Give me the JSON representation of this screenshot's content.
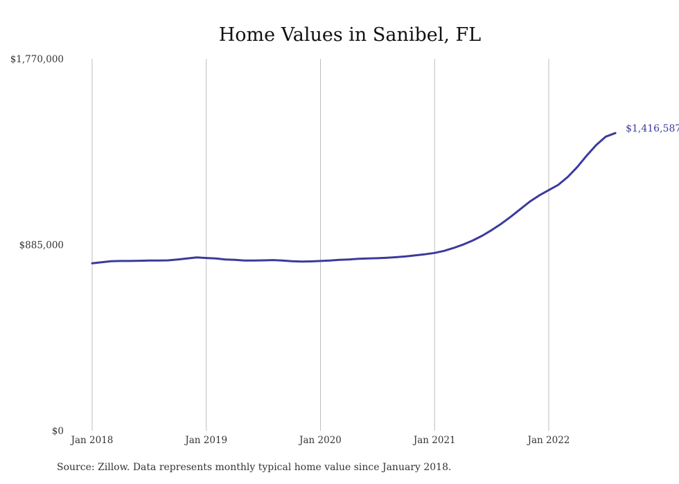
{
  "chart_data": {
    "type": "line",
    "title": "Home Values in Sanibel, FL",
    "xlabel": "",
    "ylabel": "",
    "ylim": [
      0,
      1770000
    ],
    "y_ticks": [
      {
        "value": 0,
        "label": "$0"
      },
      {
        "value": 885000,
        "label": "$885,000"
      },
      {
        "value": 1770000,
        "label": "$1,770,000"
      }
    ],
    "x_ticks": [
      {
        "value": "2018-01",
        "label": "Jan 2018"
      },
      {
        "value": "2019-01",
        "label": "Jan 2019"
      },
      {
        "value": "2020-01",
        "label": "Jan 2020"
      },
      {
        "value": "2021-01",
        "label": "Jan 2021"
      },
      {
        "value": "2022-01",
        "label": "Jan 2022"
      }
    ],
    "grid": {
      "vertical": true,
      "horizontal": false
    },
    "legend": "none",
    "series": [
      {
        "color": "#3b3a9c",
        "end_label": "$1,416,587",
        "points": [
          [
            "2018-01",
            797000
          ],
          [
            "2018-02",
            802000
          ],
          [
            "2018-03",
            807000
          ],
          [
            "2018-04",
            808000
          ],
          [
            "2018-05",
            808000
          ],
          [
            "2018-06",
            809000
          ],
          [
            "2018-07",
            810000
          ],
          [
            "2018-08",
            810000
          ],
          [
            "2018-09",
            811000
          ],
          [
            "2018-10",
            815000
          ],
          [
            "2018-11",
            820000
          ],
          [
            "2018-12",
            825000
          ],
          [
            "2019-01",
            822000
          ],
          [
            "2019-02",
            820000
          ],
          [
            "2019-03",
            815000
          ],
          [
            "2019-04",
            813000
          ],
          [
            "2019-05",
            810000
          ],
          [
            "2019-06",
            810000
          ],
          [
            "2019-07",
            811000
          ],
          [
            "2019-08",
            812000
          ],
          [
            "2019-09",
            810000
          ],
          [
            "2019-10",
            807000
          ],
          [
            "2019-11",
            805000
          ],
          [
            "2019-12",
            806000
          ],
          [
            "2020-01",
            808000
          ],
          [
            "2020-02",
            810000
          ],
          [
            "2020-03",
            813000
          ],
          [
            "2020-04",
            815000
          ],
          [
            "2020-05",
            818000
          ],
          [
            "2020-06",
            820000
          ],
          [
            "2020-07",
            821000
          ],
          [
            "2020-08",
            823000
          ],
          [
            "2020-09",
            826000
          ],
          [
            "2020-10",
            830000
          ],
          [
            "2020-11",
            835000
          ],
          [
            "2020-12",
            840000
          ],
          [
            "2021-01",
            846000
          ],
          [
            "2021-02",
            856000
          ],
          [
            "2021-03",
            870000
          ],
          [
            "2021-04",
            886000
          ],
          [
            "2021-05",
            905000
          ],
          [
            "2021-06",
            928000
          ],
          [
            "2021-07",
            955000
          ],
          [
            "2021-08",
            985000
          ],
          [
            "2021-09",
            1018000
          ],
          [
            "2021-10",
            1054000
          ],
          [
            "2021-11",
            1090000
          ],
          [
            "2021-12",
            1120000
          ],
          [
            "2022-01",
            1145000
          ],
          [
            "2022-02",
            1170000
          ],
          [
            "2022-03",
            1208000
          ],
          [
            "2022-04",
            1255000
          ],
          [
            "2022-05",
            1310000
          ],
          [
            "2022-06",
            1360000
          ],
          [
            "2022-07",
            1400000
          ],
          [
            "2022-08",
            1416587
          ]
        ]
      }
    ]
  },
  "footer": {
    "source": "Source: Zillow. Data represents monthly typical home value since January 2018."
  }
}
